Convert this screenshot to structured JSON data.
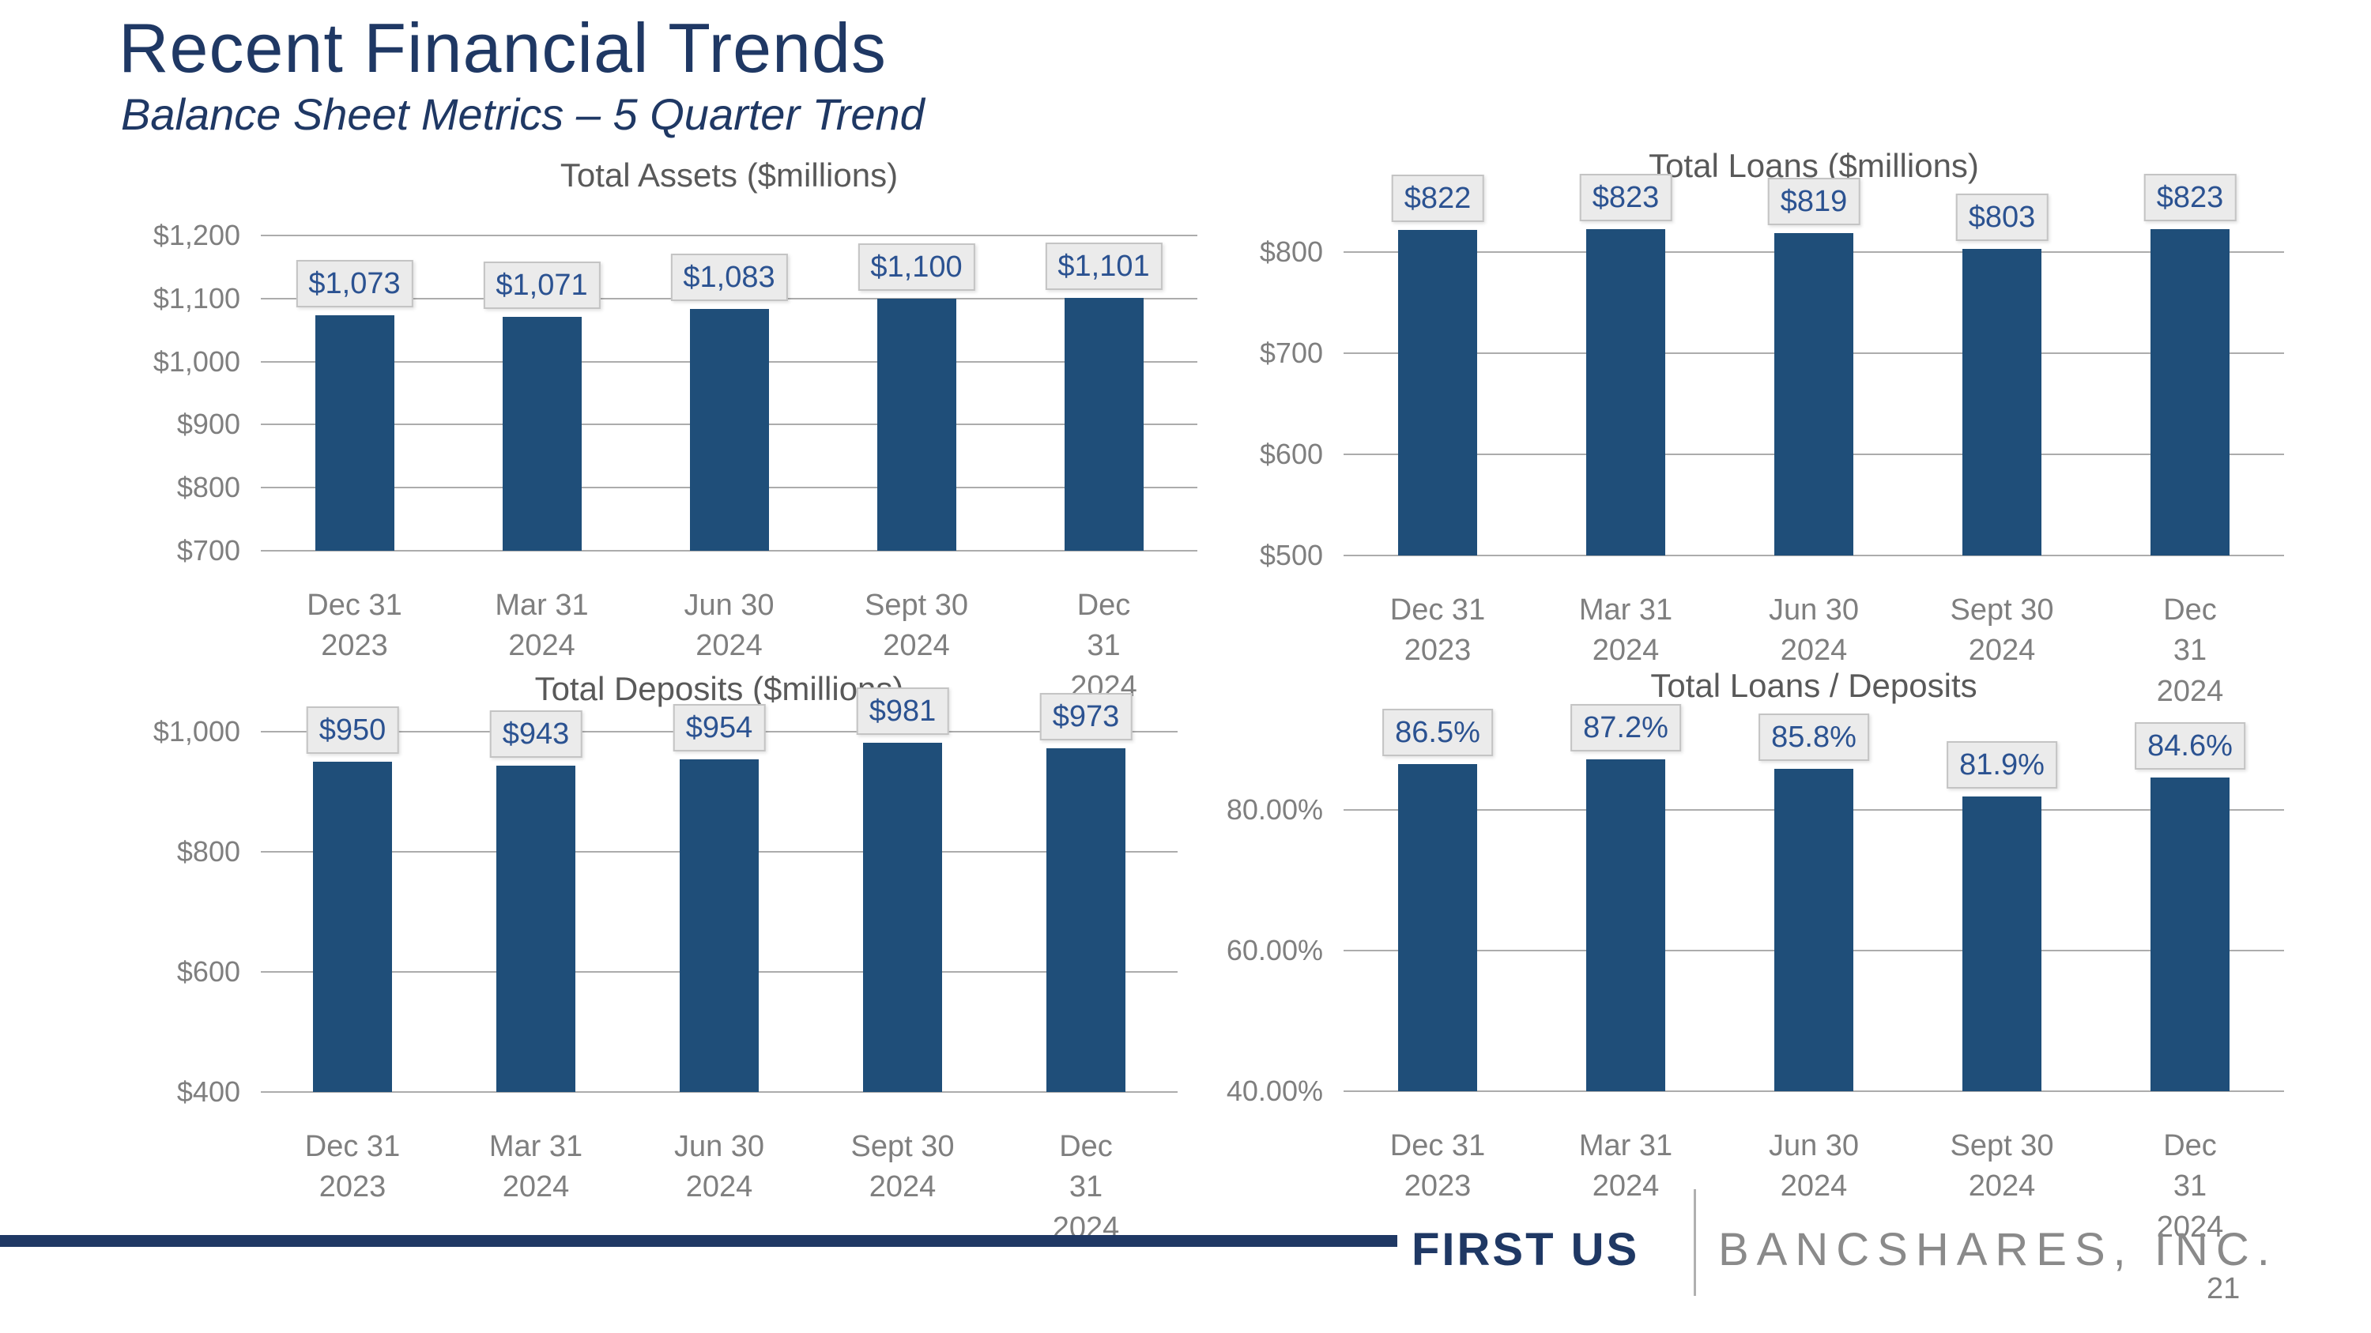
{
  "slide": {
    "title": "Recent Financial Trends",
    "subtitle": "Balance Sheet Metrics – 5 Quarter Trend"
  },
  "footer": {
    "brand_primary": "FIRST US",
    "brand_secondary": "BANCSHARES, INC.",
    "page_number": "21"
  },
  "colors": {
    "navy_accent": "#1F3864",
    "bar_fill": "#1F4E79",
    "value_label_text": "#2B5291",
    "axis_text": "#7F7F7F",
    "chart_title_text": "#595959",
    "gridline": "#ACACAC",
    "value_box_bg": "#EBEBEB",
    "value_box_border": "#C4C4C4",
    "brand_secondary_gray": "#8A8A8A"
  },
  "chart_data": [
    {
      "type": "bar",
      "title": "Total Assets ($millions)",
      "categories": [
        "Dec 31\n2023",
        "Mar 31\n2024",
        "Jun 30\n2024",
        "Sept 30\n2024",
        "Dec 31\n2024"
      ],
      "values": [
        1073,
        1071,
        1083,
        1100,
        1101
      ],
      "data_labels": [
        "$1,073",
        "$1,071",
        "$1,083",
        "$1,100",
        "$1,101"
      ],
      "ylim": [
        700,
        1200
      ],
      "y_ticks": [
        {
          "value": 1200,
          "label": "$1,200"
        },
        {
          "value": 1100,
          "label": "$1,100"
        },
        {
          "value": 1000,
          "label": "$1,000"
        },
        {
          "value": 900,
          "label": "$900"
        },
        {
          "value": 800,
          "label": "$800"
        },
        {
          "value": 700,
          "label": "$700"
        }
      ],
      "grid": true,
      "legend": "none"
    },
    {
      "type": "bar",
      "title": "Total Loans ($millions)",
      "categories": [
        "Dec 31\n2023",
        "Mar 31\n2024",
        "Jun 30\n2024",
        "Sept 30\n2024",
        "Dec  31\n2024"
      ],
      "values": [
        822,
        823,
        819,
        803,
        823
      ],
      "data_labels": [
        "$822",
        "$823",
        "$819",
        "$803",
        "$823"
      ],
      "ylim": [
        500,
        850
      ],
      "y_ticks": [
        {
          "value": 800,
          "label": "$800"
        },
        {
          "value": 700,
          "label": "$700"
        },
        {
          "value": 600,
          "label": "$600"
        },
        {
          "value": 500,
          "label": "$500"
        }
      ],
      "grid": true,
      "legend": "none"
    },
    {
      "type": "bar",
      "title": "Total Deposits ($millions)",
      "categories": [
        "Dec 31\n2023",
        "Mar 31\n2024",
        "Jun 30\n2024",
        "Sept 30\n2024",
        "Dec 31\n2024"
      ],
      "values": [
        950,
        943,
        954,
        981,
        973
      ],
      "data_labels": [
        "$950",
        "$943",
        "$954",
        "$981",
        "$973"
      ],
      "ylim": [
        400,
        1050
      ],
      "y_ticks": [
        {
          "value": 1000,
          "label": "$1,000"
        },
        {
          "value": 800,
          "label": "$800"
        },
        {
          "value": 600,
          "label": "$600"
        },
        {
          "value": 400,
          "label": "$400"
        }
      ],
      "grid": true,
      "legend": "none"
    },
    {
      "type": "bar",
      "title": "Total Loans / Deposits",
      "categories": [
        "Dec 31\n2023",
        "Mar 31\n2024",
        "Jun 30\n2024",
        "Sept 30\n2024",
        "Dec 31\n2024"
      ],
      "values": [
        86.5,
        87.2,
        85.8,
        81.9,
        84.6
      ],
      "data_labels": [
        "86.5%",
        "87.2%",
        "85.8%",
        "81.9%",
        "84.6%"
      ],
      "ylim": [
        40,
        90
      ],
      "y_ticks": [
        {
          "value": 80,
          "label": "80.00%"
        },
        {
          "value": 60,
          "label": "60.00%"
        },
        {
          "value": 40,
          "label": "40.00%"
        }
      ],
      "grid": true,
      "legend": "none"
    }
  ]
}
